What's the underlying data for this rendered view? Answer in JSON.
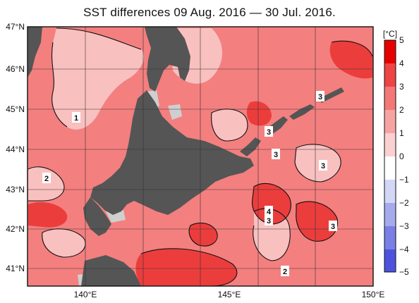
{
  "title": "SST differences 09 Aug. 2016 — 30 Jul. 2016.",
  "lat_labels": [
    "47°N",
    "46°N",
    "45°N",
    "44°N",
    "43°N",
    "42°N",
    "41°N"
  ],
  "lon_labels": [
    "140°E",
    "145°E",
    "150°E"
  ],
  "colorbar": {
    "unit": "[°C]",
    "ticks": [
      "5",
      "4",
      "3",
      "2",
      "1",
      "0",
      "−1",
      "−2",
      "−3",
      "−4",
      "−5"
    ]
  },
  "contour_labels": [
    "1",
    "2",
    "3",
    "3",
    "3",
    "3",
    "4",
    "3",
    "3",
    "2"
  ],
  "colors": {
    "land": "#555555",
    "sea_mid": "#f47f7f",
    "sea_light": "#f9c0c0",
    "sea_strong": "#ec3d3d",
    "ice": "#cfcfcf"
  }
}
